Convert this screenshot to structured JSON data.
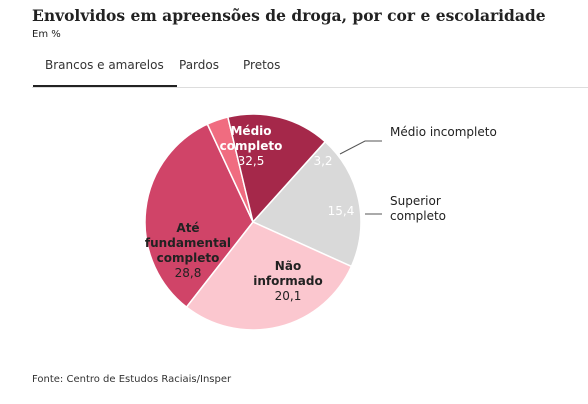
{
  "title": "Envolvidos em apreensões de droga, por cor e escolaridade",
  "subtitle": "Em %",
  "tabs": [
    {
      "label": "Brancos e amarelos",
      "active": true
    },
    {
      "label": "Pardos",
      "active": false
    },
    {
      "label": "Pretos",
      "active": false
    }
  ],
  "source": "Fonte: Centro de Estudos Raciais/Insper",
  "chart_data": {
    "type": "pie",
    "title": "",
    "series_name": "Brancos e amarelos",
    "slices": [
      {
        "label": "Médio completo",
        "label_lines": [
          "Médio",
          "completo"
        ],
        "value": 32.5,
        "value_text": "32,5",
        "color": "#d04468",
        "text_color": "#ffffff",
        "label_placement": "inside"
      },
      {
        "label": "Médio incompleto",
        "label_lines": [
          "Médio incompleto"
        ],
        "value": 3.2,
        "value_text": "3,2",
        "color": "#f06c80",
        "text_color": "#ffffff",
        "label_placement": "outside"
      },
      {
        "label": "Superior completo",
        "label_lines": [
          "Superior",
          "completo"
        ],
        "value": 15.4,
        "value_text": "15,4",
        "color": "#a5284a",
        "text_color": "#ffffff",
        "label_placement": "outside"
      },
      {
        "label": "Não informado",
        "label_lines": [
          "Não",
          "informado"
        ],
        "value": 20.1,
        "value_text": "20,1",
        "color": "#d9d9d9",
        "text_color": "#222222",
        "label_placement": "inside"
      },
      {
        "label": "Até fundamental completo",
        "label_lines": [
          "Até",
          "fundamental",
          "completo"
        ],
        "value": 28.8,
        "value_text": "28,8",
        "color": "#fbc7cf",
        "text_color": "#222222",
        "label_placement": "inside"
      }
    ]
  }
}
